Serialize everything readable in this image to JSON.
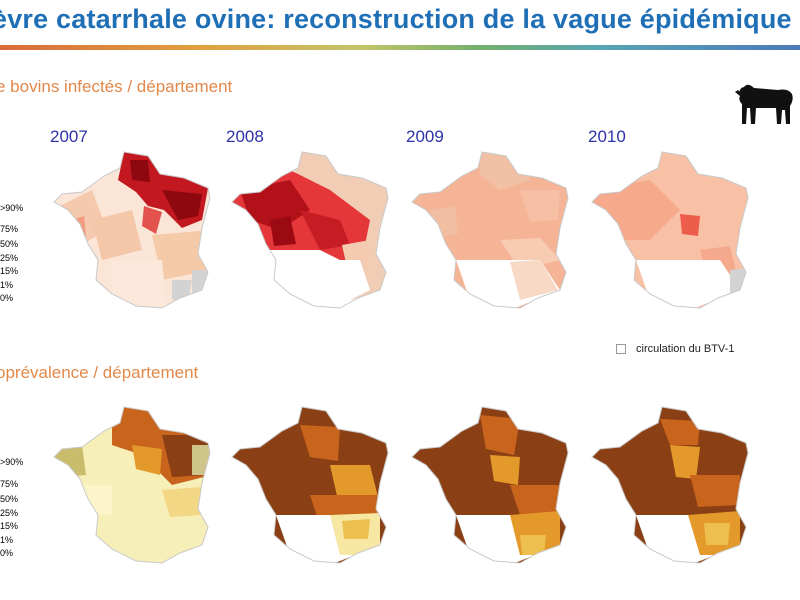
{
  "title": "èvre catarrhale ovine: reconstruction de la vague épidémique",
  "sections": {
    "infected": {
      "label": "e bovins infectés / département"
    },
    "seroprevalence": {
      "label": "oprévalence / département"
    }
  },
  "years": [
    "2007",
    "2008",
    "2009",
    "2010"
  ],
  "legend": [
    ">90%",
    "75%",
    "50%",
    "25%",
    "15%",
    "1%",
    "0%"
  ],
  "note": {
    "label": "circulation du BTV-1"
  },
  "icons": {
    "animal": "cow-icon"
  },
  "colors": {
    "title": "#1f6fb6",
    "section": "#e2884a",
    "year": "#2d33a8",
    "infected_scale": [
      "#9b0a12",
      "#d0222a",
      "#ee4e4a",
      "#f48b6e",
      "#f7b597",
      "#f9d8c3",
      "#ffffff"
    ],
    "seroprevalence_scale": [
      "#8b3f14",
      "#c8611c",
      "#e28d26",
      "#edbf4f",
      "#f5e596",
      "#fbf5cc",
      "#ffffff"
    ]
  }
}
